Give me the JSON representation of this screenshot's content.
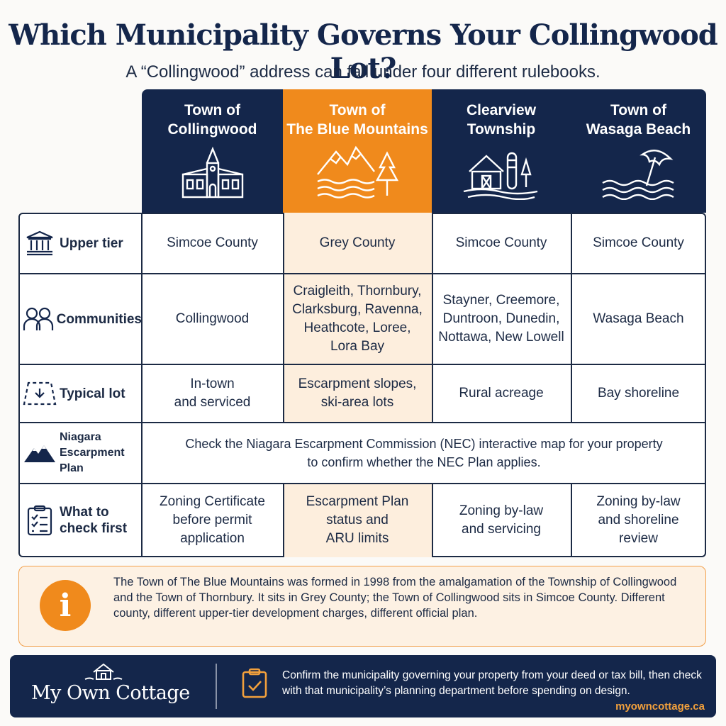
{
  "title": "Which Municipality Governs Your Collingwood Lot?",
  "subtitle": "A “Collingwood” address can fall under four different rulebooks.",
  "columns": [
    {
      "name": "Town of\nCollingwood",
      "icon": "town-hall-icon"
    },
    {
      "name": "Town of\nThe Blue Mountains",
      "icon": "mountains-icon"
    },
    {
      "name": "Clearview\nTownship",
      "icon": "barn-silo-icon"
    },
    {
      "name": "Town of\nWasaga Beach",
      "icon": "beach-umbrella-icon"
    }
  ],
  "rows": [
    {
      "label": "Upper tier",
      "icon": "government-building-icon",
      "cells": [
        "Simcoe County",
        "Grey County",
        "Simcoe County",
        "Simcoe County"
      ]
    },
    {
      "label": "Communities",
      "icon": "people-icon",
      "cells": [
        "Collingwood",
        "Craigleith, Thornbury,\nClarksburg, Ravenna,\nHeathcote, Loree,\nLora Bay",
        "Stayner, Creemore,\nDuntroon, Dunedin,\nNottawa, New Lowell",
        "Wasaga Beach"
      ]
    },
    {
      "label": "Typical lot",
      "icon": "lot-boundary-icon",
      "cells": [
        "In-town\nand serviced",
        "Escarpment slopes,\nski-area lots",
        "Rural acreage",
        "Bay shoreline"
      ]
    },
    {
      "label": "Niagara\nEscarpment\nPlan",
      "icon": "escarpment-icon",
      "span": "Check the Niagara Escarpment Commission (NEC) interactive map for your property\nto confirm whether the NEC Plan applies."
    },
    {
      "label": "What to\ncheck first",
      "icon": "checklist-icon",
      "cells": [
        "Zoning Certificate\nbefore permit\napplication",
        "Escarpment Plan\nstatus and\nARU limits",
        "Zoning by-law\nand servicing",
        "Zoning by-law\nand shoreline\nreview"
      ]
    }
  ],
  "info": {
    "icon": "info-icon",
    "text": "The Town of The Blue Mountains was formed in 1998 from the amalgamation of the Township of Collingwood and the Town of Thornbury. It sits in Grey County; the Town of Collingwood sits in Simcoe County. Different county, different upper-tier development charges, different official plan."
  },
  "footer": {
    "brand": "My Own Cottage",
    "text": "Confirm the municipality governing your property from your deed or tax bill, then check with that municipality’s planning department before spending on design.",
    "url": "myowncottage.ca"
  },
  "colors": {
    "navy": "#14264b",
    "orange": "#f08a1c",
    "highlight": "#fdeedd"
  }
}
